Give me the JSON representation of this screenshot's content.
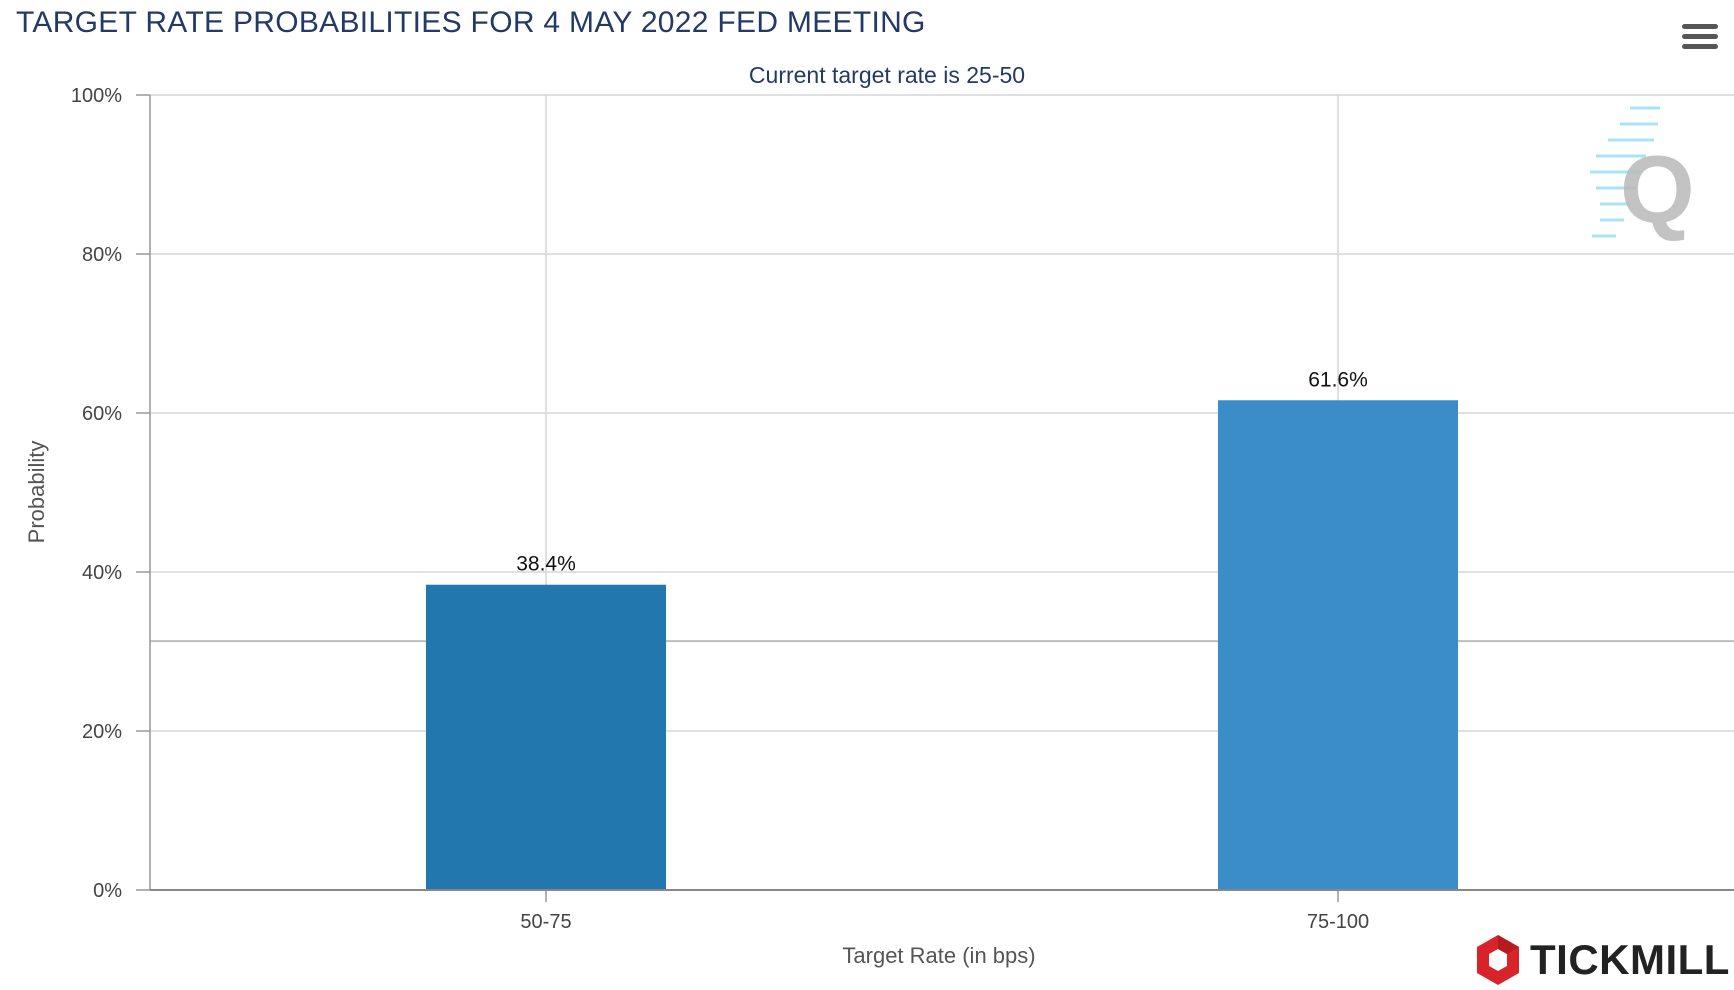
{
  "colors": {
    "title": "#233a66",
    "bar_primary": "#2277ae",
    "bar_secondary": "#3a8dc8",
    "grid": "#d6d6d6",
    "brand_red": "#d8232a"
  },
  "menu": {
    "icon": "hamburger-menu-icon"
  },
  "watermark": {
    "glyph": "Q",
    "icon": "quikstrike-logo-icon"
  },
  "brand": {
    "name": "TICKMILL",
    "icon": "tickmill-logo-icon"
  },
  "chart_data": {
    "type": "bar",
    "title": "TARGET RATE PROBABILITIES FOR 4 MAY 2022 FED MEETING",
    "subtitle": "Current target rate is 25-50",
    "xlabel": "Target Rate (in bps)",
    "ylabel": "Probability",
    "categories": [
      "50-75",
      "75-100"
    ],
    "values": [
      38.4,
      61.6
    ],
    "value_labels": [
      "38.4%",
      "61.6%"
    ],
    "ylim": [
      0,
      100
    ],
    "yticks": [
      0,
      20,
      40,
      60,
      80,
      100
    ],
    "ytick_labels": [
      "0%",
      "20%",
      "40%",
      "60%",
      "80%",
      "100%"
    ],
    "reference_line": 31.3,
    "grid": true,
    "legend": "none"
  }
}
